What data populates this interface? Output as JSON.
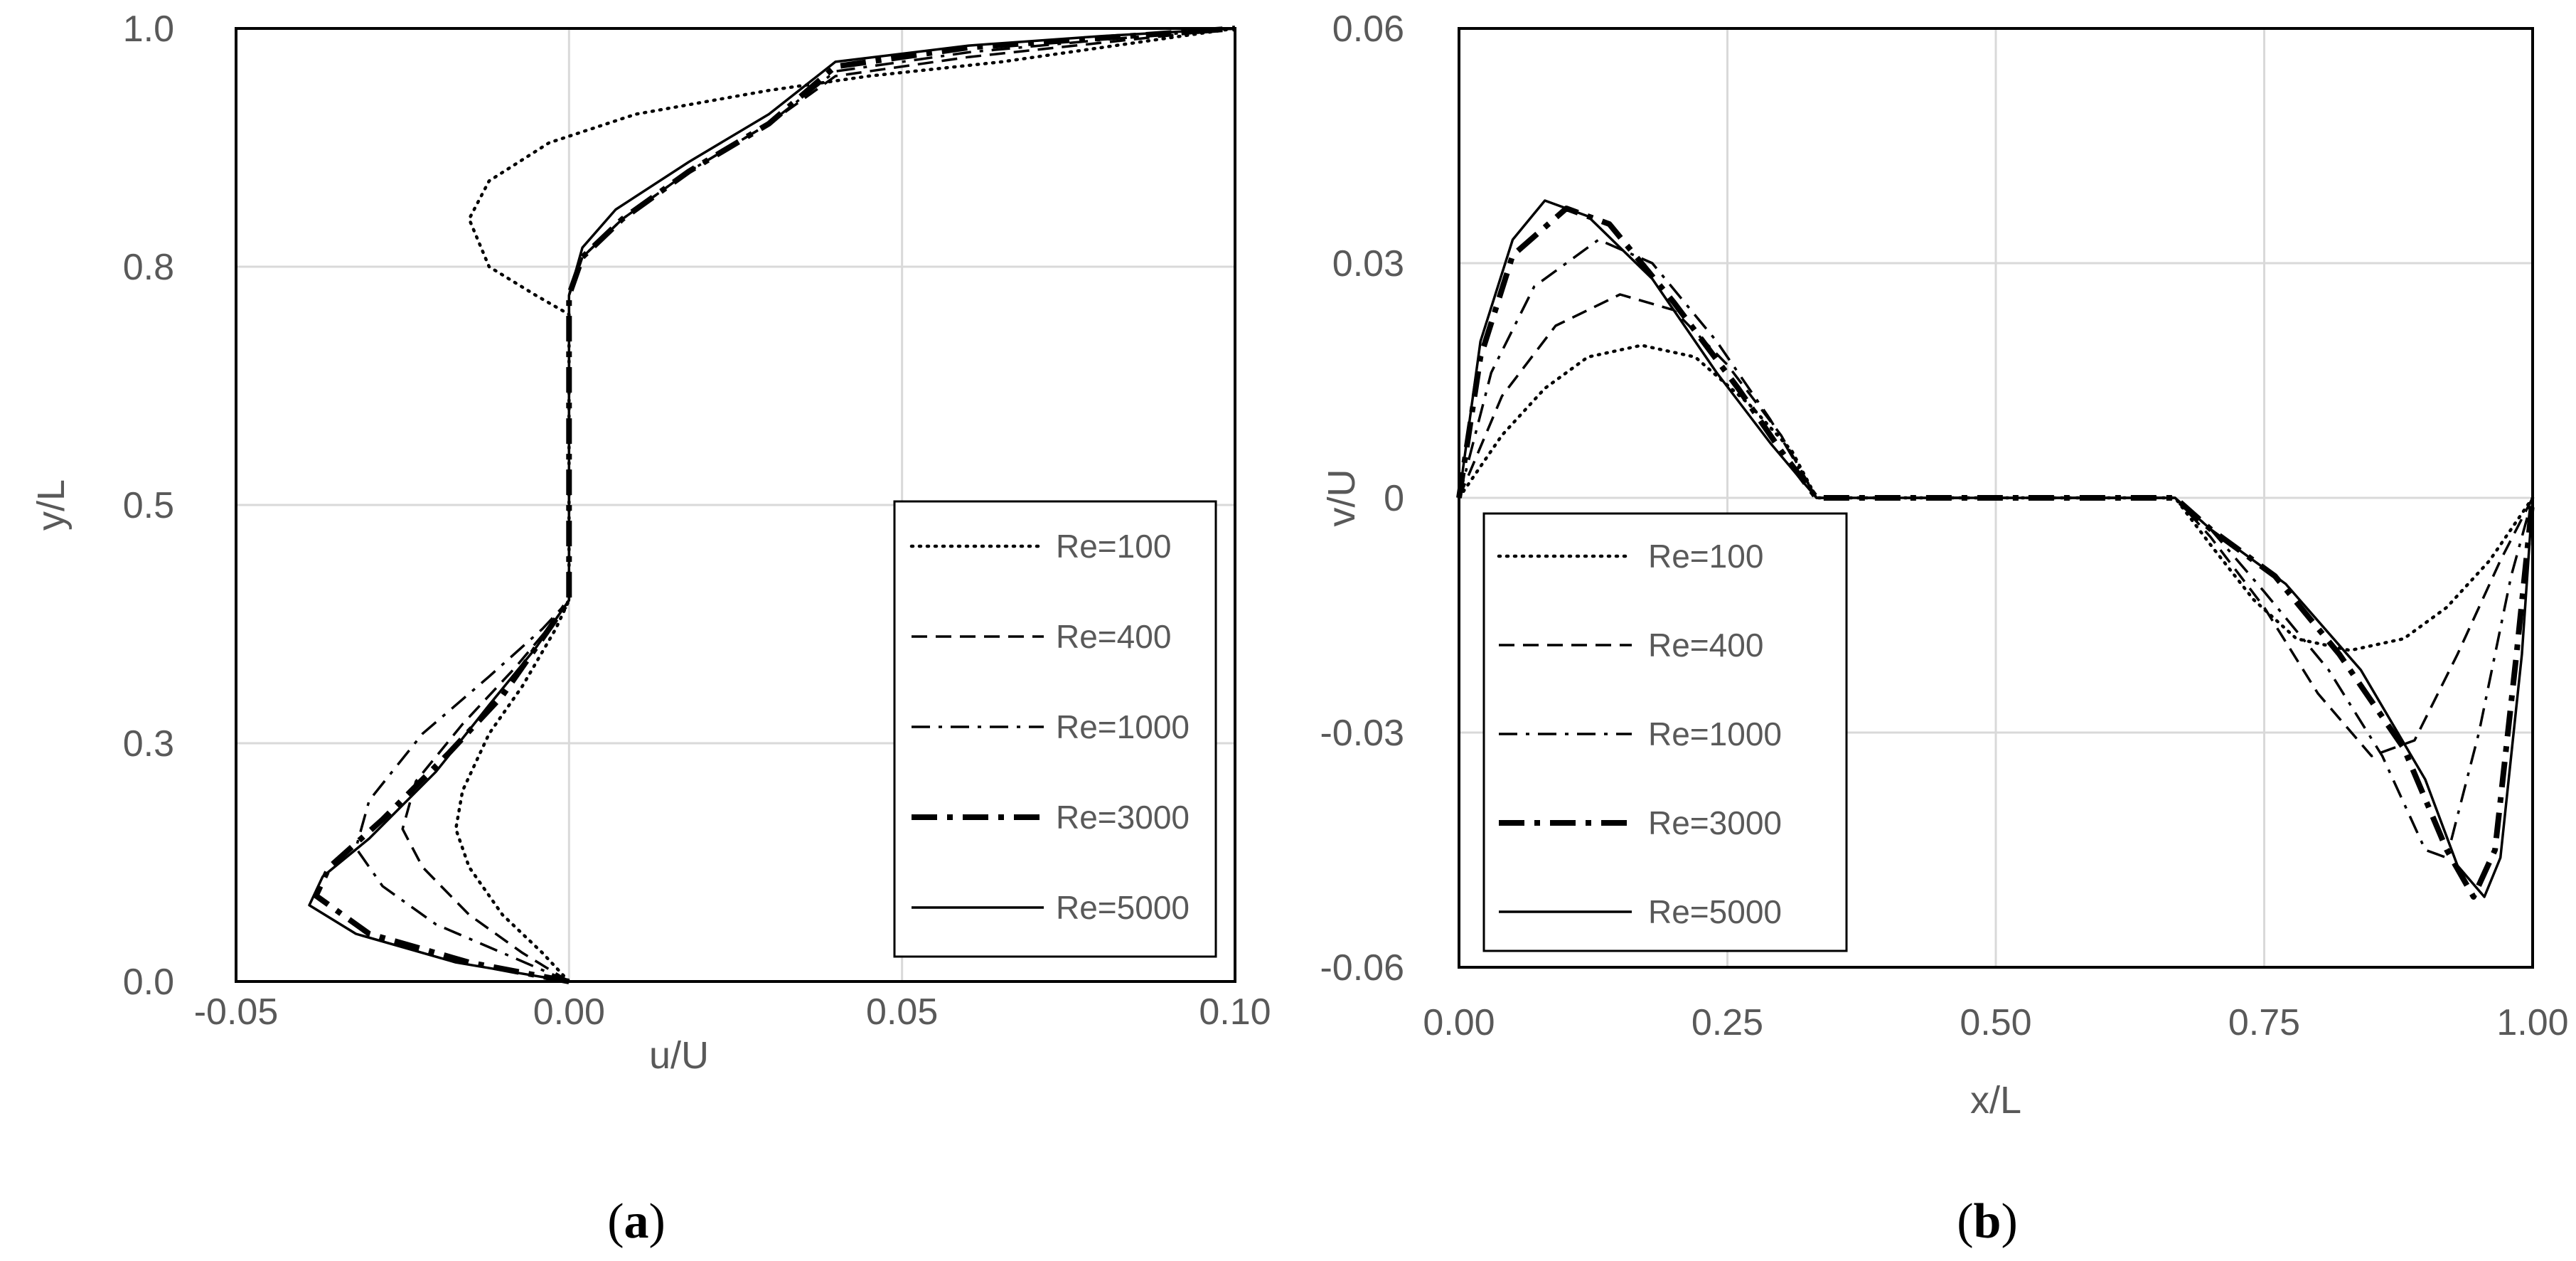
{
  "chart_data": [
    {
      "id": "a",
      "type": "line",
      "panel_label_open": "(",
      "panel_label_letter": "a",
      "panel_label_close": ")",
      "xlabel": "u/U",
      "ylabel": "y/L",
      "xlim": [
        -0.05,
        0.1
      ],
      "ylim": [
        0.0,
        1.0
      ],
      "xticks": [
        -0.05,
        0.0,
        0.05,
        0.1
      ],
      "xtick_labels": [
        "-0.05",
        "0.00",
        "0.05",
        "0.10"
      ],
      "yticks": [
        0.0,
        0.25,
        0.5,
        0.75,
        1.0
      ],
      "ytick_labels": [
        "0.0",
        "0.3",
        "0.5",
        "0.8",
        "1.0"
      ],
      "grid": true,
      "legend": "bottom-right",
      "series": [
        {
          "name": "Re=100",
          "style": "dotted",
          "points": [
            [
              0,
              0
            ],
            [
              -0.004,
              0.03
            ],
            [
              -0.01,
              0.07
            ],
            [
              -0.015,
              0.12
            ],
            [
              -0.017,
              0.16
            ],
            [
              -0.016,
              0.2
            ],
            [
              -0.012,
              0.26
            ],
            [
              -0.007,
              0.31
            ],
            [
              -0.002,
              0.37
            ],
            [
              0,
              0.4
            ],
            [
              0,
              0.7
            ],
            [
              -0.005,
              0.72
            ],
            [
              -0.012,
              0.75
            ],
            [
              -0.015,
              0.8
            ],
            [
              -0.012,
              0.84
            ],
            [
              -0.003,
              0.88
            ],
            [
              0.01,
              0.91
            ],
            [
              0.03,
              0.935
            ],
            [
              0.045,
              0.95
            ],
            [
              0.065,
              0.965
            ],
            [
              0.085,
              0.985
            ],
            [
              0.1,
              1.0
            ]
          ]
        },
        {
          "name": "Re=400",
          "style": "dashed",
          "points": [
            [
              0,
              0
            ],
            [
              -0.007,
              0.03
            ],
            [
              -0.015,
              0.07
            ],
            [
              -0.022,
              0.12
            ],
            [
              -0.025,
              0.16
            ],
            [
              -0.023,
              0.21
            ],
            [
              -0.016,
              0.27
            ],
            [
              -0.008,
              0.33
            ],
            [
              -0.002,
              0.38
            ],
            [
              0,
              0.4
            ],
            [
              0,
              0.72
            ],
            [
              0.002,
              0.76
            ],
            [
              0.008,
              0.8
            ],
            [
              0.018,
              0.85
            ],
            [
              0.03,
              0.9
            ],
            [
              0.04,
              0.95
            ],
            [
              0.06,
              0.97
            ],
            [
              0.08,
              0.985
            ],
            [
              0.1,
              1.0
            ]
          ]
        },
        {
          "name": "Re=1000",
          "style": "dashdot",
          "points": [
            [
              0,
              0
            ],
            [
              -0.01,
              0.03
            ],
            [
              -0.02,
              0.06
            ],
            [
              -0.028,
              0.1
            ],
            [
              -0.032,
              0.14
            ],
            [
              -0.03,
              0.19
            ],
            [
              -0.022,
              0.26
            ],
            [
              -0.012,
              0.32
            ],
            [
              -0.004,
              0.37
            ],
            [
              0,
              0.4
            ],
            [
              0,
              0.72
            ],
            [
              0.002,
              0.76
            ],
            [
              0.008,
              0.8
            ],
            [
              0.018,
              0.85
            ],
            [
              0.03,
              0.9
            ],
            [
              0.04,
              0.955
            ],
            [
              0.06,
              0.975
            ],
            [
              0.08,
              0.988
            ],
            [
              0.1,
              1.0
            ]
          ]
        },
        {
          "name": "Re=3000",
          "style": "thick-dashdot",
          "points": [
            [
              0,
              0
            ],
            [
              -0.015,
              0.02
            ],
            [
              -0.03,
              0.05
            ],
            [
              -0.038,
              0.09
            ],
            [
              -0.036,
              0.12
            ],
            [
              -0.028,
              0.17
            ],
            [
              -0.018,
              0.24
            ],
            [
              -0.01,
              0.3
            ],
            [
              -0.004,
              0.36
            ],
            [
              0,
              0.4
            ],
            [
              0,
              0.72
            ],
            [
              0.002,
              0.76
            ],
            [
              0.008,
              0.8
            ],
            [
              0.018,
              0.85
            ],
            [
              0.03,
              0.9
            ],
            [
              0.04,
              0.96
            ],
            [
              0.06,
              0.98
            ],
            [
              0.08,
              0.99
            ],
            [
              0.1,
              1.0
            ]
          ]
        },
        {
          "name": "Re=5000",
          "style": "solid",
          "points": [
            [
              0,
              0
            ],
            [
              -0.017,
              0.02
            ],
            [
              -0.032,
              0.05
            ],
            [
              -0.039,
              0.08
            ],
            [
              -0.037,
              0.11
            ],
            [
              -0.03,
              0.15
            ],
            [
              -0.02,
              0.22
            ],
            [
              -0.012,
              0.29
            ],
            [
              -0.005,
              0.35
            ],
            [
              0,
              0.4
            ],
            [
              0,
              0.72
            ],
            [
              0.002,
              0.77
            ],
            [
              0.007,
              0.81
            ],
            [
              0.018,
              0.86
            ],
            [
              0.03,
              0.91
            ],
            [
              0.04,
              0.965
            ],
            [
              0.06,
              0.982
            ],
            [
              0.08,
              0.992
            ],
            [
              0.1,
              1.0
            ]
          ]
        }
      ]
    },
    {
      "id": "b",
      "type": "line",
      "panel_label_open": "(",
      "panel_label_letter": "b",
      "panel_label_close": ")",
      "xlabel": "x/L",
      "ylabel": "v/U",
      "xlim": [
        0.0,
        1.0
      ],
      "ylim": [
        -0.06,
        0.06
      ],
      "xticks": [
        0.0,
        0.25,
        0.5,
        0.75,
        1.0
      ],
      "xtick_labels": [
        "0.00",
        "0.25",
        "0.50",
        "0.75",
        "1.00"
      ],
      "yticks": [
        -0.06,
        -0.03,
        0.0,
        0.03,
        0.06
      ],
      "ytick_labels": [
        "-0.06",
        "-0.03",
        "0",
        "0.03",
        "0.06"
      ],
      "grid": true,
      "legend": "bottom-left",
      "series": [
        {
          "name": "Re=100",
          "style": "dotted",
          "points": [
            [
              0,
              0
            ],
            [
              0.04,
              0.008
            ],
            [
              0.08,
              0.014
            ],
            [
              0.12,
              0.018
            ],
            [
              0.17,
              0.0195
            ],
            [
              0.22,
              0.018
            ],
            [
              0.27,
              0.012
            ],
            [
              0.31,
              0.006
            ],
            [
              0.333,
              0
            ],
            [
              0.667,
              0
            ],
            [
              0.7,
              -0.006
            ],
            [
              0.74,
              -0.013
            ],
            [
              0.78,
              -0.018
            ],
            [
              0.83,
              -0.0195
            ],
            [
              0.88,
              -0.018
            ],
            [
              0.92,
              -0.014
            ],
            [
              0.96,
              -0.008
            ],
            [
              1.0,
              0
            ]
          ]
        },
        {
          "name": "Re=400",
          "style": "dashed",
          "points": [
            [
              0,
              0
            ],
            [
              0.04,
              0.013
            ],
            [
              0.09,
              0.022
            ],
            [
              0.15,
              0.026
            ],
            [
              0.2,
              0.024
            ],
            [
              0.25,
              0.017
            ],
            [
              0.3,
              0.008
            ],
            [
              0.333,
              0
            ],
            [
              0.667,
              0
            ],
            [
              0.7,
              -0.005
            ],
            [
              0.75,
              -0.014
            ],
            [
              0.8,
              -0.025
            ],
            [
              0.85,
              -0.033
            ],
            [
              0.89,
              -0.031
            ],
            [
              0.93,
              -0.02
            ],
            [
              0.97,
              -0.008
            ],
            [
              1.0,
              0
            ]
          ]
        },
        {
          "name": "Re=1000",
          "style": "dashdot",
          "points": [
            [
              0,
              0
            ],
            [
              0.03,
              0.016
            ],
            [
              0.07,
              0.027
            ],
            [
              0.13,
              0.033
            ],
            [
              0.18,
              0.03
            ],
            [
              0.24,
              0.02
            ],
            [
              0.29,
              0.01
            ],
            [
              0.333,
              0
            ],
            [
              0.667,
              0
            ],
            [
              0.7,
              -0.004
            ],
            [
              0.75,
              -0.012
            ],
            [
              0.81,
              -0.022
            ],
            [
              0.86,
              -0.033
            ],
            [
              0.9,
              -0.045
            ],
            [
              0.92,
              -0.046
            ],
            [
              0.95,
              -0.03
            ],
            [
              0.98,
              -0.01
            ],
            [
              1.0,
              0
            ]
          ]
        },
        {
          "name": "Re=3000",
          "style": "thick-dashdot",
          "points": [
            [
              0,
              0
            ],
            [
              0.02,
              0.018
            ],
            [
              0.05,
              0.031
            ],
            [
              0.1,
              0.037
            ],
            [
              0.14,
              0.035
            ],
            [
              0.2,
              0.025
            ],
            [
              0.26,
              0.014
            ],
            [
              0.3,
              0.006
            ],
            [
              0.333,
              0
            ],
            [
              0.667,
              0
            ],
            [
              0.7,
              -0.004
            ],
            [
              0.76,
              -0.01
            ],
            [
              0.82,
              -0.02
            ],
            [
              0.88,
              -0.032
            ],
            [
              0.92,
              -0.045
            ],
            [
              0.945,
              -0.051
            ],
            [
              0.965,
              -0.045
            ],
            [
              0.985,
              -0.02
            ],
            [
              1.0,
              0
            ]
          ]
        },
        {
          "name": "Re=5000",
          "style": "solid",
          "points": [
            [
              0,
              0
            ],
            [
              0.02,
              0.02
            ],
            [
              0.05,
              0.033
            ],
            [
              0.08,
              0.038
            ],
            [
              0.12,
              0.036
            ],
            [
              0.18,
              0.028
            ],
            [
              0.24,
              0.016
            ],
            [
              0.29,
              0.007
            ],
            [
              0.333,
              0
            ],
            [
              0.667,
              0
            ],
            [
              0.7,
              -0.004
            ],
            [
              0.77,
              -0.011
            ],
            [
              0.84,
              -0.022
            ],
            [
              0.9,
              -0.036
            ],
            [
              0.93,
              -0.047
            ],
            [
              0.955,
              -0.051
            ],
            [
              0.97,
              -0.046
            ],
            [
              0.99,
              -0.02
            ],
            [
              1.0,
              0
            ]
          ]
        }
      ]
    }
  ]
}
